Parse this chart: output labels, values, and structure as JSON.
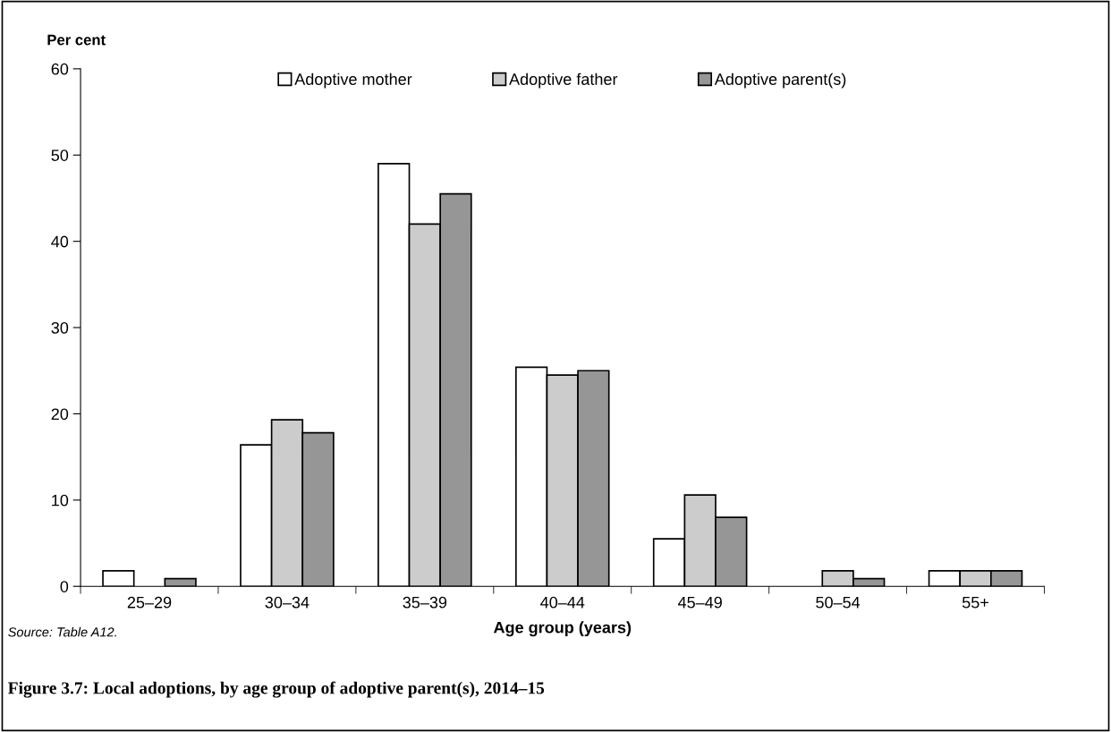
{
  "chart_data": {
    "type": "bar",
    "title": "Figure 3.7: Local adoptions, by age group of adoptive parent(s), 2014–15",
    "xlabel": "Age group (years)",
    "ylabel": "Per cent",
    "categories": [
      "25–29",
      "30–34",
      "35–39",
      "40–44",
      "45–49",
      "50–54",
      "55+"
    ],
    "series": [
      {
        "name": "Adoptive mother",
        "color": "#ffffff",
        "values": [
          1.8,
          16.4,
          49.0,
          25.4,
          5.5,
          null,
          1.8
        ]
      },
      {
        "name": "Adoptive father",
        "color": "#cccccc",
        "values": [
          null,
          19.3,
          42.0,
          24.5,
          10.6,
          1.8,
          1.8
        ]
      },
      {
        "name": "Adoptive parent(s)",
        "color": "#969696",
        "values": [
          0.9,
          17.8,
          45.5,
          25.0,
          8.0,
          0.9,
          1.8
        ]
      }
    ],
    "ylim": [
      0,
      60
    ],
    "yticks": [
      0,
      10,
      20,
      30,
      40,
      50,
      60
    ],
    "grid": false,
    "legend": "top",
    "annotations": [
      "Source: Table A12."
    ]
  }
}
